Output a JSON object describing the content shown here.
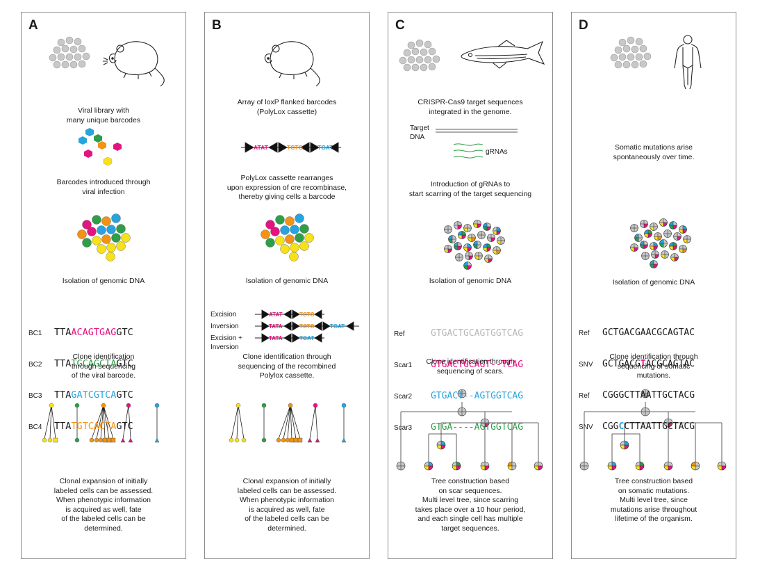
{
  "colors": {
    "magenta": "#e5137f",
    "orange": "#f39214",
    "blue": "#27a4dd",
    "green": "#2e9e48",
    "yellow": "#f7e11a",
    "grey": "#c8c8c8",
    "border": "#8c8c8c"
  },
  "panels": [
    {
      "label": "A",
      "captions": [
        "Viral library with\nmany unique barcodes",
        "Barcodes introduced through\nviral infection",
        "Isolation of genomic DNA",
        "Clone identification\nthrough sequencing\nof the viral barcode.",
        "Clonal expansion of initially\nlabeled cells can be assessed.\nWhen phenotypic information\nis acquired as well, fate\nof the labeled cells can be\ndetermined."
      ],
      "seq_labels": [
        "BC1",
        "BC2",
        "BC3",
        "BC4"
      ],
      "seq_rows": [
        {
          "pre": "TTA",
          "mid": "ACAGTGAG",
          "post": "GTC"
        },
        {
          "pre": "TTA",
          "mid": "TGCAGCTA",
          "post": "GTC"
        },
        {
          "pre": "TTA",
          "mid": "GATCGTCA",
          "post": "GTC"
        },
        {
          "pre": "TTA",
          "mid": "TGTCACTA",
          "post": "GTC"
        }
      ]
    },
    {
      "label": "B",
      "captions": [
        "Array of loxP flanked barcodes\n(PolyLox cassette)",
        "PolyLox cassette rearranges\nupon expression of cre recombinase,\nthereby giving cells a barcode",
        "Isolation of genomic DNA",
        "Clone identification through\nsequencing of the recombined\nPolylox cassette.",
        "Clonal expansion of initially\nlabeled cells can be assessed.\nWhen phenotypic information\nis acquired as well, fate\nof the labeled cells can be\ndetermined."
      ],
      "cassette_codes": [
        "ATAT",
        "TCTG",
        "TGAT"
      ],
      "rearr_labels": [
        "Excision",
        "Inversion",
        "Excision +\nInversion"
      ],
      "rearr_codes": [
        "ATAT",
        "TCTG",
        "TATA",
        "TCTG",
        "TGAT",
        "TATA",
        "TGAT"
      ]
    },
    {
      "label": "C",
      "captions": [
        "CRISPR-Cas9 target sequences\nintegrated in the genome.",
        "Introduction of gRNAs to\nstart scarring of the target sequencing",
        "Isolation of genomic DNA",
        "Clone identification through\nsequencing of scars.",
        "Tree construction based\non scar sequences.\nMulti level tree, since scarring\ntakes place over a 10 hour period,\nand each single cell has multiple\ntarget sequences."
      ],
      "target_label": "Target\nDNA",
      "grna_label": "gRNAs",
      "seq_labels": [
        "Ref",
        "Scar1",
        "Scar2",
        "Scar3"
      ],
      "seq_rows": [
        "GTGACTGCAGTGGTCAG",
        "GTGACTGCAGT--TCAG",
        "GTGACT--AGTGGTCAG",
        "GTGA----AGTGGTCAG"
      ]
    },
    {
      "label": "D",
      "captions": [
        "Somatic mutations arise\nspontaneously over time.",
        "Isolation of genomic DNA",
        "Clone identification through\nsequencing of somatic\nmutations.",
        "Tree construction based\non somatic mutations.\nMulti level tree, since\nmutations arise throughout\nlifetime of the organism."
      ],
      "seq_labels": [
        "Ref",
        "SNV",
        "Ref",
        "SNV"
      ],
      "seq_rows": [
        {
          "pre": "GCTGACGAACGCAGTAC",
          "mut": "",
          "post": ""
        },
        {
          "pre": "GCTGACG",
          "mut": "T",
          "post": "ACGCAGTAC"
        },
        {
          "pre": "CGGGCTTAATTGCTACG",
          "mut": "",
          "post": ""
        },
        {
          "pre": "CGG",
          "mut": "C",
          "post": "CTTAATTGCTACG"
        }
      ]
    }
  ]
}
